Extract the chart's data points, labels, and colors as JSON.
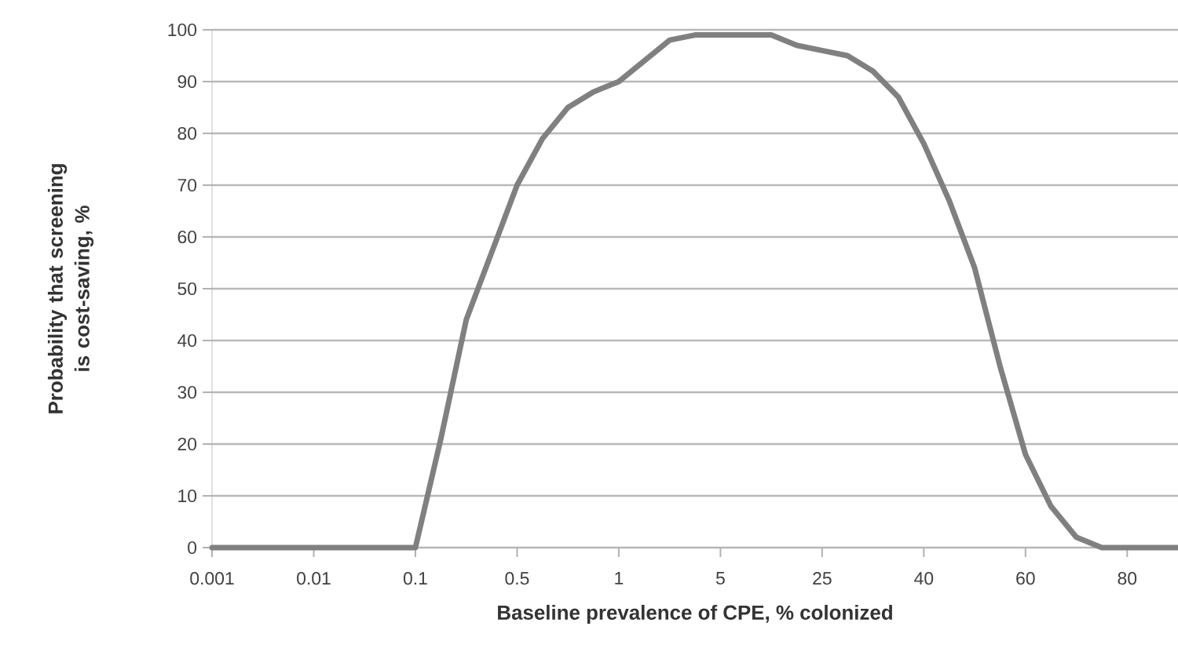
{
  "chart_data": {
    "type": "line",
    "xlabel": "Baseline prevalence of CPE, % colonized",
    "ylabel": "Probability that screening is cost-saving, %",
    "categories": [
      "0.001",
      null,
      null,
      null,
      "0.01",
      null,
      null,
      null,
      "0.1",
      null,
      null,
      null,
      "0.5",
      null,
      null,
      null,
      "1",
      null,
      null,
      null,
      "5",
      null,
      null,
      null,
      "25",
      null,
      null,
      null,
      "40",
      null,
      null,
      null,
      "60",
      null,
      null,
      null,
      "80",
      null,
      null
    ],
    "values": [
      0,
      0,
      0,
      0,
      0,
      0,
      0,
      0,
      0,
      21,
      44,
      57,
      70,
      79,
      85,
      88,
      90,
      94,
      98,
      99,
      99,
      99,
      99,
      97,
      96,
      95,
      92,
      87,
      78,
      67,
      54,
      35,
      18,
      8,
      2,
      0,
      0,
      0,
      0
    ],
    "color": "#808080",
    "ylim": [
      0,
      100
    ],
    "yticks": [
      0,
      10,
      20,
      30,
      40,
      50,
      60,
      70,
      80,
      90,
      100
    ],
    "grid": "y"
  }
}
